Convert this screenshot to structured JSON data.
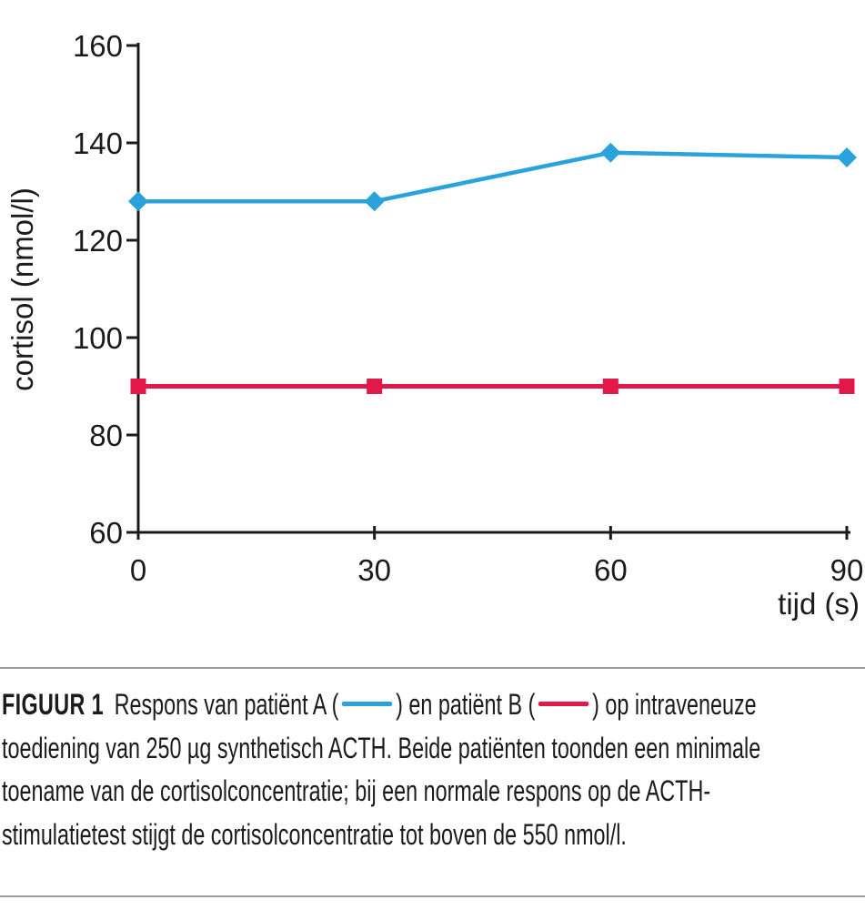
{
  "colors": {
    "patient_a": "#2aa2db",
    "patient_b": "#e2174a",
    "axis": "#1b1b1b",
    "rule": "#9b9b9b",
    "background": "#ffffff"
  },
  "chart_data": {
    "type": "line",
    "x": [
      0,
      30,
      60,
      90
    ],
    "series": [
      {
        "name": "patiënt A",
        "marker": "diamond",
        "color_key": "patient_a",
        "values": [
          128,
          128,
          138,
          137
        ]
      },
      {
        "name": "patiënt B",
        "marker": "square",
        "color_key": "patient_b",
        "values": [
          90,
          90,
          90,
          90
        ]
      }
    ],
    "xlabel": "tijd (s)",
    "ylabel": "cortisol (nmol/l)",
    "xlim": [
      0,
      90
    ],
    "ylim": [
      60,
      160
    ],
    "xticks": [
      0,
      30,
      60,
      90
    ],
    "yticks": [
      60,
      80,
      100,
      120,
      140,
      160
    ],
    "grid": false,
    "legend_position": "inline-in-caption"
  },
  "caption": {
    "label": "FIGUUR 1",
    "line1_pre": "Respons van patiënt A (",
    "line1_mid": ") en patiënt B (",
    "line1_post": ") op intraveneuze",
    "line2": "toediening van 250 µg synthetisch ACTH. Beide patiënten toonden een minimale",
    "line3": "toename van de cortisolconcentratie; bij een normale respons op de ACTH-",
    "line4": "stimulatietest stijgt de cortisolconcentratie tot boven de 550 nmol/l."
  }
}
